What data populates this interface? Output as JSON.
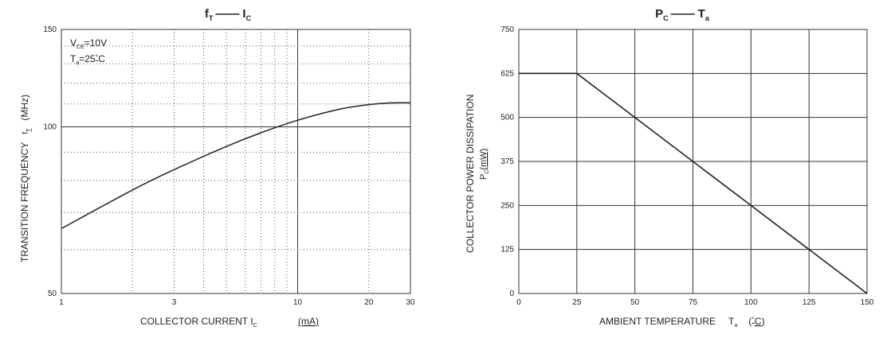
{
  "chart_data": [
    {
      "type": "line",
      "title": {
        "main": "f",
        "main_sub": "T",
        "dash": "——",
        "second": "I",
        "second_sub": "C"
      },
      "xscale": "log",
      "xlim": [
        1,
        30
      ],
      "ylim": [
        50,
        150
      ],
      "xticks": [
        1,
        3,
        10,
        20,
        30
      ],
      "yticks": [
        50,
        100,
        150
      ],
      "xlabel": {
        "text": "COLLECTOR CURRENT I",
        "sub": "C",
        "unit": "(mA)"
      },
      "ylabel": {
        "text": "TRANSITION FREQUENCY",
        "sym": "f",
        "sym_sub": "T",
        "unit": "(MHz)"
      },
      "annotations": [
        {
          "pre": "V",
          "sub": "CE",
          "post": "=10V"
        },
        {
          "pre": "T",
          "sub": "a",
          "post": "=25",
          "deg": "C"
        }
      ],
      "grid": "dotted",
      "series": [
        {
          "x": [
            1,
            2,
            3,
            5,
            7,
            10,
            15,
            20,
            25,
            30
          ],
          "y": [
            65.5,
            76.9,
            83.7,
            92.2,
            97.6,
            102.8,
            107.6,
            109.7,
            110.5,
            110.5
          ]
        }
      ]
    },
    {
      "type": "line",
      "title": {
        "main": "P",
        "main_sub": "C",
        "dash": "——",
        "second": "T",
        "second_sub": "a"
      },
      "xlim": [
        0,
        150
      ],
      "ylim": [
        0,
        750
      ],
      "xticks": [
        0,
        25,
        50,
        75,
        100,
        125,
        150
      ],
      "yticks": [
        0,
        125,
        250,
        375,
        500,
        625,
        750
      ],
      "xlabel": {
        "text": "AMBIENT TEMPERATURE",
        "sym": "T",
        "sub": "a",
        "unit": "C"
      },
      "ylabel": {
        "line1": "COLLECTOR POWER DISSIPATION",
        "sym": "P",
        "sym_sub": "C",
        "unit": "(mW)"
      },
      "grid": "solid",
      "series": [
        {
          "x": [
            0,
            25,
            150
          ],
          "y": [
            625,
            625,
            0
          ]
        }
      ]
    }
  ]
}
